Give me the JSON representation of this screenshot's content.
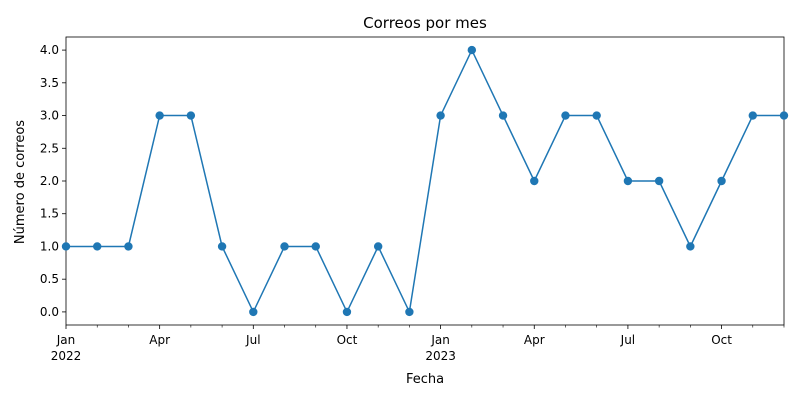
{
  "chart_data": {
    "type": "line",
    "title": "Correos por mes",
    "xlabel": "Fecha",
    "ylabel": "Número de correos",
    "x": [
      "2022-01",
      "2022-02",
      "2022-03",
      "2022-04",
      "2022-05",
      "2022-06",
      "2022-07",
      "2022-08",
      "2022-09",
      "2022-10",
      "2022-11",
      "2022-12",
      "2023-01",
      "2023-02",
      "2023-03",
      "2023-04",
      "2023-05",
      "2023-06",
      "2023-07",
      "2023-08",
      "2023-09",
      "2023-10",
      "2023-11",
      "2023-12"
    ],
    "series": [
      {
        "values": [
          1,
          1,
          1,
          3,
          3,
          1,
          0,
          1,
          1,
          0,
          1,
          0,
          3,
          4,
          3,
          2,
          3,
          3,
          2,
          2,
          1,
          2,
          3,
          3
        ],
        "color": "#1f77b4",
        "marker": "circle"
      }
    ],
    "ylim": [
      -0.2,
      4.2
    ],
    "yticks": [
      "0.0",
      "0.5",
      "1.0",
      "1.5",
      "2.0",
      "2.5",
      "3.0",
      "3.5",
      "4.0"
    ],
    "xticks": [
      {
        "x": "2022-01",
        "label": "Jan",
        "sublabel": "2022"
      },
      {
        "x": "2022-04",
        "label": "Apr"
      },
      {
        "x": "2022-07",
        "label": "Jul"
      },
      {
        "x": "2022-10",
        "label": "Oct"
      },
      {
        "x": "2023-01",
        "label": "Jan",
        "sublabel": "2023"
      },
      {
        "x": "2023-04",
        "label": "Apr"
      },
      {
        "x": "2023-07",
        "label": "Jul"
      },
      {
        "x": "2023-10",
        "label": "Oct"
      }
    ],
    "grid": false,
    "legend": "none"
  }
}
